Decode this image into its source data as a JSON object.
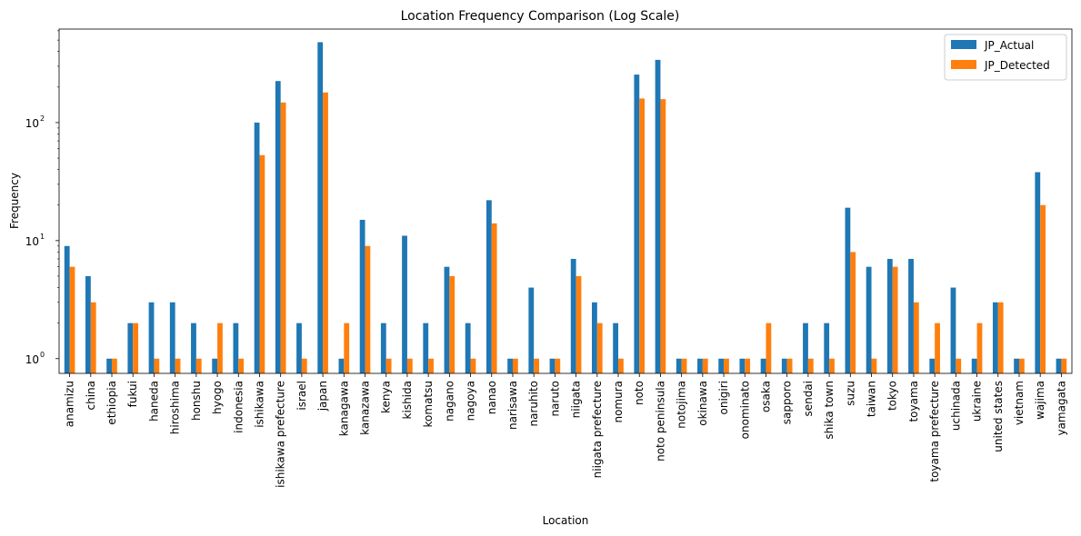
{
  "chart_data": {
    "type": "bar",
    "title": "Location Frequency Comparison (Log Scale)",
    "xlabel": "Location",
    "ylabel": "Frequency",
    "yscale": "log",
    "ylim": [
      0.75,
      620
    ],
    "yticks": [
      {
        "value": 1,
        "base": "10",
        "exp": "0"
      },
      {
        "value": 10,
        "base": "10",
        "exp": "1"
      },
      {
        "value": 100,
        "base": "10",
        "exp": "2"
      }
    ],
    "legend_position": "top-right",
    "categories": [
      "anamizu",
      "china",
      "ethiopia",
      "fukui",
      "haneda",
      "hiroshima",
      "honshu",
      "hyogo",
      "indonesia",
      "ishikawa",
      "ishikawa prefecture",
      "israel",
      "japan",
      "kanagawa",
      "kanazawa",
      "kenya",
      "kishida",
      "komatsu",
      "nagano",
      "nagoya",
      "nanao",
      "narisawa",
      "naruhito",
      "naruto",
      "niigata",
      "niigata prefecture",
      "nomura",
      "noto",
      "noto peninsula",
      "notojima",
      "okinawa",
      "onigiri",
      "onominato",
      "osaka",
      "sapporo",
      "sendai",
      "shika town",
      "suzu",
      "taiwan",
      "tokyo",
      "toyama",
      "toyama prefecture",
      "uchinada",
      "ukraine",
      "united states",
      "vietnam",
      "wajima",
      "yamagata"
    ],
    "series": [
      {
        "name": "JP_Actual",
        "color": "#1f77b4",
        "values": [
          9,
          5,
          1,
          2,
          3,
          3,
          2,
          1,
          2,
          100,
          225,
          2,
          480,
          1,
          15,
          2,
          11,
          2,
          6,
          2,
          22,
          1,
          4,
          1,
          7,
          3,
          2,
          255,
          340,
          1,
          1,
          1,
          1,
          1,
          1,
          2,
          2,
          19,
          6,
          7,
          7,
          1,
          4,
          1,
          3,
          1,
          38,
          1
        ]
      },
      {
        "name": "JP_Detected",
        "color": "#ff7f0e",
        "values": [
          6,
          3,
          1,
          2,
          1,
          1,
          1,
          2,
          1,
          53,
          148,
          1,
          180,
          2,
          9,
          1,
          1,
          1,
          5,
          1,
          14,
          1,
          1,
          1,
          5,
          2,
          1,
          160,
          158,
          1,
          1,
          1,
          1,
          2,
          1,
          1,
          1,
          8,
          1,
          6,
          3,
          2,
          1,
          2,
          3,
          1,
          20,
          1
        ]
      }
    ]
  }
}
